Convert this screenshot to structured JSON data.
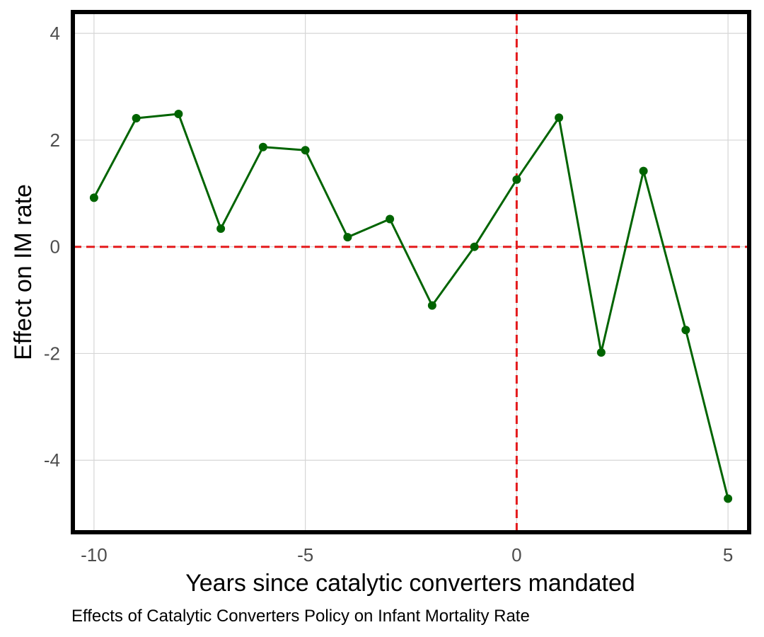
{
  "chart_data": {
    "type": "line",
    "caption": "Effects of Catalytic Converters Policy on Infant Mortality Rate",
    "xlabel": "Years since catalytic converters mandated",
    "ylabel": "Effect on IM rate",
    "xlim": [
      -10.5,
      5.5
    ],
    "ylim": [
      -5.35,
      4.4
    ],
    "x_ticks": [
      -10,
      -5,
      0,
      5
    ],
    "y_ticks": [
      -4,
      -2,
      0,
      2,
      4
    ],
    "grid": true,
    "reference_lines": [
      {
        "axis": "y",
        "value": 0,
        "style": "dashed",
        "color": "#e41a1c"
      },
      {
        "axis": "x",
        "value": 0,
        "style": "dashed",
        "color": "#e41a1c"
      }
    ],
    "series": [
      {
        "color": "#006400",
        "x": [
          -10,
          -9,
          -8,
          -7,
          -6,
          -5,
          -4,
          -3,
          -2,
          -1,
          0,
          1,
          2,
          3,
          4,
          5
        ],
        "y": [
          0.92,
          2.41,
          2.49,
          0.34,
          1.87,
          1.81,
          0.18,
          0.52,
          -1.1,
          0.0,
          1.26,
          2.42,
          -1.98,
          1.42,
          -1.56,
          -4.72
        ]
      }
    ]
  }
}
